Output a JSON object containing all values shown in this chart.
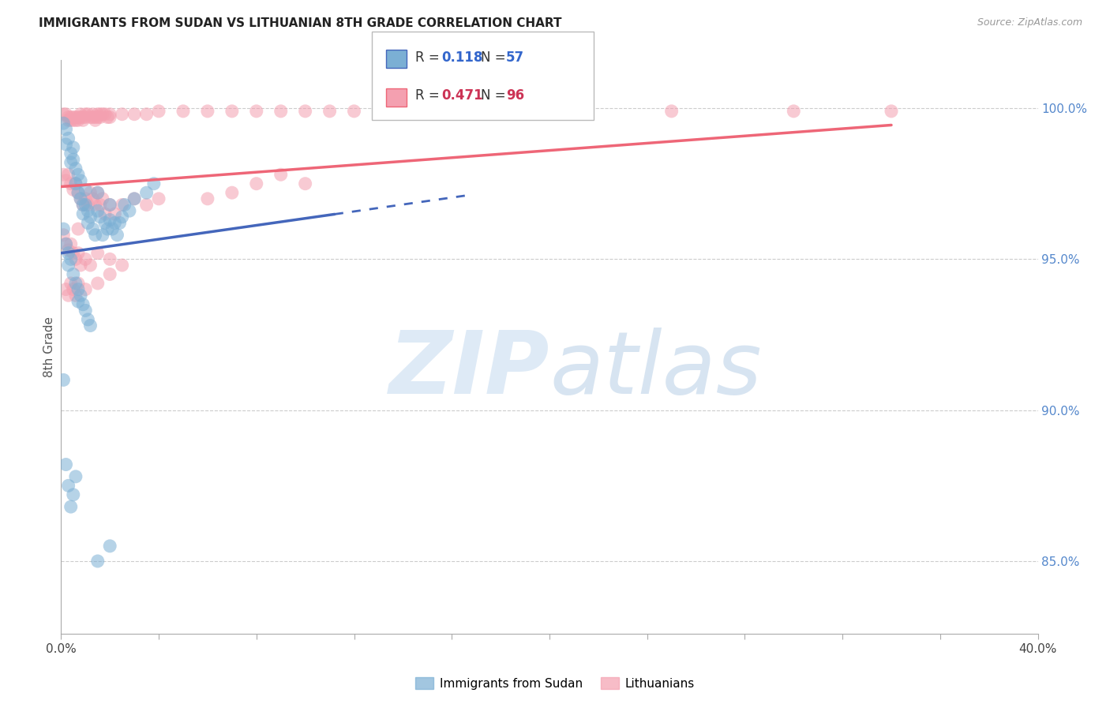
{
  "title": "IMMIGRANTS FROM SUDAN VS LITHUANIAN 8TH GRADE CORRELATION CHART",
  "source": "Source: ZipAtlas.com",
  "ylabel": "8th Grade",
  "ylabel_right_ticks": [
    "100.0%",
    "95.0%",
    "90.0%",
    "85.0%"
  ],
  "ylabel_right_positions": [
    1.0,
    0.95,
    0.9,
    0.85
  ],
  "xlim": [
    0.0,
    0.4
  ],
  "ylim": [
    0.826,
    1.016
  ],
  "blue_R": 0.118,
  "blue_N": 57,
  "pink_R": 0.471,
  "pink_N": 96,
  "blue_color": "#7BAFD4",
  "pink_color": "#F4A0B0",
  "blue_line_color": "#4466BB",
  "pink_line_color": "#EE6677",
  "legend_label_blue": "Immigrants from Sudan",
  "legend_label_pink": "Lithuanians",
  "blue_points": [
    [
      0.001,
      0.995
    ],
    [
      0.002,
      0.993
    ],
    [
      0.002,
      0.988
    ],
    [
      0.003,
      0.99
    ],
    [
      0.004,
      0.985
    ],
    [
      0.004,
      0.982
    ],
    [
      0.005,
      0.987
    ],
    [
      0.005,
      0.983
    ],
    [
      0.006,
      0.98
    ],
    [
      0.006,
      0.975
    ],
    [
      0.007,
      0.978
    ],
    [
      0.007,
      0.972
    ],
    [
      0.008,
      0.976
    ],
    [
      0.008,
      0.97
    ],
    [
      0.009,
      0.968
    ],
    [
      0.009,
      0.965
    ],
    [
      0.01,
      0.973
    ],
    [
      0.01,
      0.968
    ],
    [
      0.011,
      0.966
    ],
    [
      0.011,
      0.962
    ],
    [
      0.012,
      0.964
    ],
    [
      0.013,
      0.96
    ],
    [
      0.014,
      0.958
    ],
    [
      0.015,
      0.972
    ],
    [
      0.015,
      0.966
    ],
    [
      0.016,
      0.964
    ],
    [
      0.017,
      0.958
    ],
    [
      0.018,
      0.962
    ],
    [
      0.019,
      0.96
    ],
    [
      0.02,
      0.968
    ],
    [
      0.02,
      0.963
    ],
    [
      0.021,
      0.96
    ],
    [
      0.022,
      0.962
    ],
    [
      0.023,
      0.958
    ],
    [
      0.024,
      0.962
    ],
    [
      0.025,
      0.964
    ],
    [
      0.026,
      0.968
    ],
    [
      0.028,
      0.966
    ],
    [
      0.03,
      0.97
    ],
    [
      0.035,
      0.972
    ],
    [
      0.038,
      0.975
    ],
    [
      0.001,
      0.96
    ],
    [
      0.002,
      0.955
    ],
    [
      0.003,
      0.952
    ],
    [
      0.003,
      0.948
    ],
    [
      0.004,
      0.95
    ],
    [
      0.005,
      0.945
    ],
    [
      0.006,
      0.942
    ],
    [
      0.007,
      0.94
    ],
    [
      0.007,
      0.936
    ],
    [
      0.008,
      0.938
    ],
    [
      0.009,
      0.935
    ],
    [
      0.01,
      0.933
    ],
    [
      0.011,
      0.93
    ],
    [
      0.012,
      0.928
    ],
    [
      0.001,
      0.91
    ],
    [
      0.002,
      0.882
    ],
    [
      0.003,
      0.875
    ],
    [
      0.004,
      0.868
    ],
    [
      0.005,
      0.872
    ],
    [
      0.006,
      0.878
    ],
    [
      0.015,
      0.85
    ],
    [
      0.02,
      0.855
    ]
  ],
  "pink_points": [
    [
      0.001,
      0.998
    ],
    [
      0.002,
      0.998
    ],
    [
      0.003,
      0.997
    ],
    [
      0.003,
      0.996
    ],
    [
      0.004,
      0.997
    ],
    [
      0.004,
      0.996
    ],
    [
      0.005,
      0.997
    ],
    [
      0.005,
      0.996
    ],
    [
      0.006,
      0.997
    ],
    [
      0.006,
      0.996
    ],
    [
      0.007,
      0.997
    ],
    [
      0.007,
      0.996
    ],
    [
      0.008,
      0.998
    ],
    [
      0.008,
      0.997
    ],
    [
      0.009,
      0.997
    ],
    [
      0.009,
      0.996
    ],
    [
      0.01,
      0.998
    ],
    [
      0.01,
      0.997
    ],
    [
      0.011,
      0.998
    ],
    [
      0.012,
      0.997
    ],
    [
      0.013,
      0.998
    ],
    [
      0.013,
      0.997
    ],
    [
      0.014,
      0.997
    ],
    [
      0.014,
      0.996
    ],
    [
      0.015,
      0.998
    ],
    [
      0.015,
      0.997
    ],
    [
      0.016,
      0.998
    ],
    [
      0.016,
      0.997
    ],
    [
      0.017,
      0.998
    ],
    [
      0.018,
      0.998
    ],
    [
      0.019,
      0.997
    ],
    [
      0.02,
      0.998
    ],
    [
      0.02,
      0.997
    ],
    [
      0.025,
      0.998
    ],
    [
      0.03,
      0.998
    ],
    [
      0.035,
      0.998
    ],
    [
      0.04,
      0.999
    ],
    [
      0.05,
      0.999
    ],
    [
      0.06,
      0.999
    ],
    [
      0.07,
      0.999
    ],
    [
      0.08,
      0.999
    ],
    [
      0.09,
      0.999
    ],
    [
      0.1,
      0.999
    ],
    [
      0.11,
      0.999
    ],
    [
      0.12,
      0.999
    ],
    [
      0.13,
      0.999
    ],
    [
      0.15,
      0.999
    ],
    [
      0.18,
      0.999
    ],
    [
      0.2,
      0.999
    ],
    [
      0.25,
      0.999
    ],
    [
      0.3,
      0.999
    ],
    [
      0.34,
      0.999
    ],
    [
      0.001,
      0.978
    ],
    [
      0.002,
      0.976
    ],
    [
      0.003,
      0.978
    ],
    [
      0.004,
      0.975
    ],
    [
      0.005,
      0.973
    ],
    [
      0.006,
      0.975
    ],
    [
      0.007,
      0.972
    ],
    [
      0.008,
      0.97
    ],
    [
      0.009,
      0.968
    ],
    [
      0.01,
      0.97
    ],
    [
      0.011,
      0.968
    ],
    [
      0.012,
      0.972
    ],
    [
      0.013,
      0.97
    ],
    [
      0.014,
      0.968
    ],
    [
      0.015,
      0.972
    ],
    [
      0.016,
      0.968
    ],
    [
      0.017,
      0.97
    ],
    [
      0.018,
      0.965
    ],
    [
      0.02,
      0.968
    ],
    [
      0.022,
      0.965
    ],
    [
      0.025,
      0.968
    ],
    [
      0.03,
      0.97
    ],
    [
      0.035,
      0.968
    ],
    [
      0.04,
      0.97
    ],
    [
      0.001,
      0.958
    ],
    [
      0.002,
      0.955
    ],
    [
      0.003,
      0.953
    ],
    [
      0.004,
      0.955
    ],
    [
      0.005,
      0.952
    ],
    [
      0.006,
      0.95
    ],
    [
      0.007,
      0.952
    ],
    [
      0.008,
      0.948
    ],
    [
      0.01,
      0.95
    ],
    [
      0.012,
      0.948
    ],
    [
      0.015,
      0.952
    ],
    [
      0.02,
      0.95
    ],
    [
      0.002,
      0.94
    ],
    [
      0.003,
      0.938
    ],
    [
      0.004,
      0.942
    ],
    [
      0.005,
      0.94
    ],
    [
      0.006,
      0.938
    ],
    [
      0.007,
      0.942
    ],
    [
      0.01,
      0.94
    ],
    [
      0.015,
      0.942
    ],
    [
      0.02,
      0.945
    ],
    [
      0.025,
      0.948
    ],
    [
      0.007,
      0.96
    ],
    [
      0.06,
      0.97
    ],
    [
      0.07,
      0.972
    ],
    [
      0.08,
      0.975
    ],
    [
      0.09,
      0.978
    ],
    [
      0.1,
      0.975
    ]
  ],
  "blue_line_x0": 0.0,
  "blue_line_y0": 0.952,
  "blue_line_x1": 0.4,
  "blue_line_y1": 0.998,
  "pink_line_x0": 0.0,
  "pink_line_y0": 0.974,
  "pink_line_x1": 0.4,
  "pink_line_y1": 0.998
}
